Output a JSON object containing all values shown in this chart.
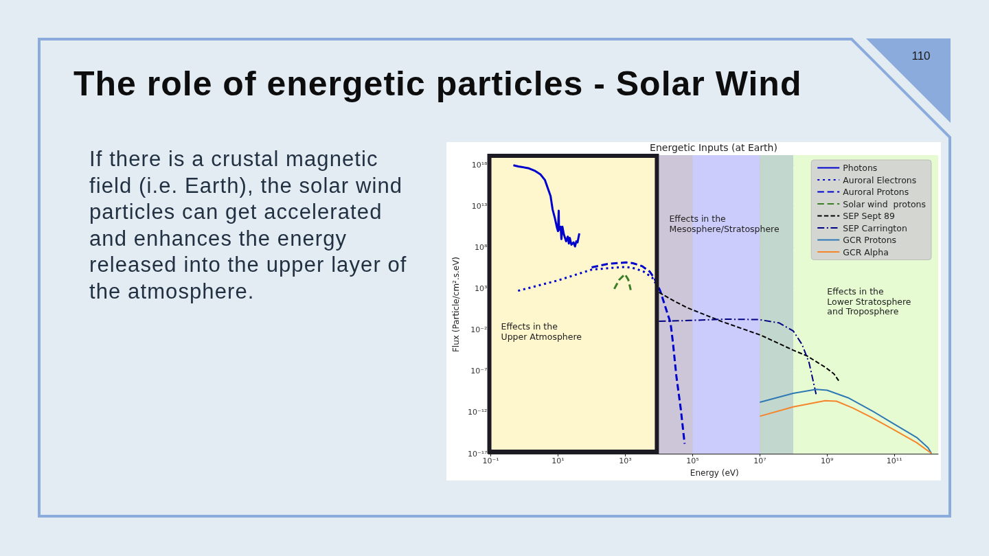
{
  "chart_data": {
    "type": "line",
    "title": "The role of energetic particles - Solar Wind",
    "subtitle": "Energetic Inputs (at Earth)",
    "xlabel": "Energy (eV)",
    "ylabel": "Flux (Particle/cm².s.eV)",
    "log": "xy",
    "grid": true,
    "legend": "top right",
    "marker": "none",
    "xlim": [
      0.1,
      2000000000000.0
    ],
    "xticks": [
      {
        "value": 0.1,
        "label": "10⁻¹"
      },
      {
        "value": 10,
        "label": "10¹"
      },
      {
        "value": 1000,
        "label": "10³"
      },
      {
        "value": 100000.0,
        "label": "10⁵"
      },
      {
        "value": 10000000.0,
        "label": "10⁷"
      },
      {
        "value": 1000000000.0,
        "label": "10⁹"
      },
      {
        "value": 100000000000.0,
        "label": "10¹¹"
      }
    ],
    "ylim": [
      1e-17,
      1.5e+19
    ],
    "yticks": [
      {
        "value": 1e-17,
        "label": "10⁻¹⁷"
      },
      {
        "value": 1e-12,
        "label": "10⁻¹²"
      },
      {
        "value": 1e-07,
        "label": "10⁻⁷"
      },
      {
        "value": 0.01,
        "label": "10⁻²"
      },
      {
        "value": 1000,
        "label": "10³"
      },
      {
        "value": 100000000.0,
        "label": "10⁸"
      },
      {
        "value": 10000000000000.0,
        "label": "10¹³"
      },
      {
        "value": 1e+18,
        "label": "10¹⁸"
      }
    ],
    "bands": [
      {
        "axis": "x",
        "from": 0.1,
        "to": 10000.0,
        "color": "#fef6cd",
        "label": "Effects in the\nUpper Atmosphere"
      },
      {
        "axis": "x",
        "from": 10000.0,
        "to": 100000.0,
        "color": "#ccc6d8",
        "label": "Effects in the\nMesosphere/Stratosphere"
      },
      {
        "axis": "x",
        "from": 100000.0,
        "to": 10000000.0,
        "color": "#ccccfc"
      },
      {
        "axis": "x",
        "from": 10000000.0,
        "to": 100000000.0,
        "color": "#c2d7cd"
      },
      {
        "axis": "x",
        "from": 100000000.0,
        "to": 2000000000000.0,
        "color": "#e6fbd2",
        "label": "Effects in the\nLower Stratosphere\nand Troposphere"
      }
    ],
    "annotations": [
      "If there is a crustal magnetic\nfield (i.e. Earth), the solar wind\nparticles can get accelerated\nand enhances the energy\nreleased into the upper layer of\nthe atmosphere.",
      "110"
    ],
    "series": [
      {
        "name": "Photons",
        "color": "#0000cd",
        "line_style": "solid",
        "x": [
          0.47,
          0.66,
          1.3,
          2.0,
          3.0,
          4.1,
          5.1,
          6.0,
          6.9,
          8.1,
          9.3,
          10,
          10.5,
          10.7,
          12,
          12.6,
          13.5,
          15,
          17.4,
          19.5,
          21,
          22.4,
          25,
          29,
          32,
          35,
          38,
          43
        ],
        "values": [
          8.9e+17,
          6.3e+17,
          4e+17,
          2e+17,
          7e+16,
          1.4e+16,
          1100000000000000.0,
          170000000000000.0,
          4000000000000.0,
          320000000000.0,
          25000000000.0,
          9300000000.0,
          2800000000000.0,
          13000000000.0,
          32000000000.0,
          1000000000.0,
          32000000000.0,
          3600000000.0,
          540000000.0,
          2000000000.0,
          290000000.0,
          1400000000.0,
          210000000.0,
          400000000.0,
          130000000.0,
          540000000.0,
          400000000.0,
          5000000000.0
        ]
      },
      {
        "name": "Auroral Electrons",
        "color": "#0000cd",
        "line_style": "dotted",
        "x": [
          0.65,
          10,
          100,
          410,
          1050,
          1950,
          3600,
          6300,
          7900
        ],
        "values": [
          550,
          10000.0,
          200000.0,
          330000.0,
          430000.0,
          280000.0,
          110000.0,
          22000.0,
          4600
        ]
      },
      {
        "name": "Auroral Protons",
        "color": "#0000cd",
        "line_style": "dashed",
        "x": [
          100,
          300,
          1050,
          1700,
          3200,
          5400,
          7400,
          11000.0,
          19000.0,
          22000.0,
          26000.0,
          33000.0,
          45000.0,
          58000.0
        ],
        "values": [
          380000.0,
          1000000.0,
          1500000.0,
          1200000.0,
          520000.0,
          110000.0,
          16000.0,
          490,
          0.47,
          0.083,
          0.00032,
          2.5e-08,
          2e-12,
          1.6e-16
        ]
      },
      {
        "name": "Solar wind  protons",
        "color": "#3c7d28",
        "line_style": "dashed",
        "x": [
          470,
          660,
          980,
          1230,
          1450
        ],
        "values": [
          930,
          12000.0,
          56000.0,
          12000.0,
          680
        ]
      },
      {
        "name": "SEP Sept 89",
        "color": "#000000",
        "line_style": "dashed",
        "x": [
          10000.0,
          28000.0,
          72000.0,
          760000.0,
          11000000.0,
          98000000.0,
          250000000.0,
          870000000.0,
          1600000000.0,
          2400000000.0
        ],
        "values": [
          360,
          32,
          4.6,
          0.1,
          0.0022,
          3.5e-05,
          7.2e-06,
          3.1e-07,
          4.7e-08,
          4.2e-09
        ]
      },
      {
        "name": "SEP Carrington",
        "color": "#000080",
        "line_style": "dashdot",
        "x": [
          10000.0,
          85000.0,
          890000.0,
          9300000.0,
          38000000.0,
          98000000.0,
          180000000.0,
          290000000.0,
          370000000.0,
          470000000.0
        ],
        "values": [
          0.11,
          0.14,
          0.2,
          0.18,
          0.069,
          0.0076,
          0.00017,
          1.1e-06,
          1.3e-08,
          1.6e-10
        ]
      },
      {
        "name": "GCR Protons",
        "color": "#2f78b5",
        "line_style": "solid",
        "x": [
          10000000.0,
          98000000.0,
          470000000.0,
          1000000000.0,
          4200000000.0,
          20000000000.0,
          95000000000.0,
          460000000000.0,
          1000000000000.0,
          1260000000000.0
        ],
        "values": [
          1.7e-11,
          2.1e-10,
          6.3e-10,
          4.9e-10,
          6e-11,
          1.9e-12,
          4.2e-14,
          9.3e-16,
          5.4e-17,
          1.1e-17
        ]
      },
      {
        "name": "GCR Alpha",
        "color": "#f5852a",
        "line_style": "solid",
        "x": [
          10000000.0,
          98000000.0,
          870000000.0,
          1900000000.0,
          5800000000.0,
          20000000000.0,
          95000000000.0,
          460000000000.0,
          1260000000000.0
        ],
        "values": [
          3.5e-13,
          4.8e-12,
          2.7e-11,
          2.3e-11,
          3.5e-12,
          2.8e-13,
          8.5e-15,
          2.2e-16,
          1.1e-17
        ]
      }
    ]
  }
}
